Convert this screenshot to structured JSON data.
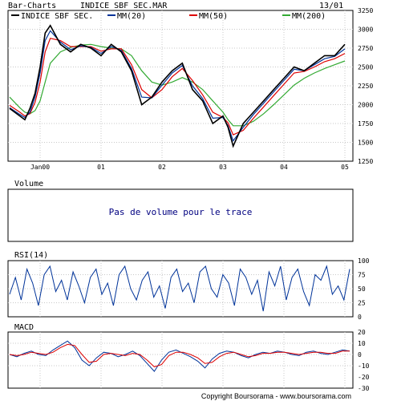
{
  "header": {
    "app_label": "Bar-Charts",
    "instrument": "INDICE SBF SEC.MAR",
    "date_label": "13/01"
  },
  "legend": [
    {
      "label": "INDICE SBF SEC.",
      "color": "#000000"
    },
    {
      "label": "MM(20)",
      "color": "#003399"
    },
    {
      "label": "MM(50)",
      "color": "#dd0000"
    },
    {
      "label": "MM(200)",
      "color": "#33aa33"
    }
  ],
  "volume_panel": {
    "title": "Volume",
    "message": "Pas de volume pour le trace"
  },
  "rsi_panel": {
    "title": "RSI(14)"
  },
  "macd_panel": {
    "title": "MACD"
  },
  "copyright": "Copyright Boursorama - www.boursorama.com",
  "chart_data": [
    {
      "type": "line",
      "title": "INDICE SBF SEC.MAR",
      "x_ticks": [
        "Jan00",
        "01",
        "02",
        "03",
        "04",
        "05"
      ],
      "y_ticks": [
        1250,
        1500,
        1750,
        2000,
        2250,
        2500,
        2750,
        3000,
        3250
      ],
      "ylim": [
        1250,
        3250
      ],
      "x": [
        "1999-07",
        "1999-09",
        "1999-10",
        "1999-11",
        "1999-12",
        "2000-01",
        "2000-02",
        "2000-03",
        "2000-05",
        "2000-07",
        "2000-09",
        "2000-11",
        "2001-01",
        "2001-03",
        "2001-05",
        "2001-07",
        "2001-09",
        "2001-11",
        "2002-01",
        "2002-03",
        "2002-05",
        "2002-07",
        "2002-09",
        "2002-11",
        "2003-01",
        "2003-02",
        "2003-03",
        "2003-05",
        "2003-07",
        "2003-09",
        "2003-11",
        "2004-01",
        "2004-03",
        "2004-05",
        "2004-07",
        "2004-09",
        "2004-11",
        "2005-01"
      ],
      "series": [
        {
          "name": "INDICE SBF SEC.",
          "color": "#000000",
          "values": [
            1950,
            1850,
            1800,
            1950,
            2150,
            2500,
            2950,
            3050,
            2800,
            2700,
            2800,
            2750,
            2650,
            2800,
            2700,
            2450,
            2000,
            2100,
            2300,
            2450,
            2550,
            2200,
            2050,
            1750,
            1850,
            1700,
            1450,
            1750,
            1900,
            2050,
            2200,
            2350,
            2500,
            2450,
            2550,
            2650,
            2650,
            2800
          ]
        },
        {
          "name": "MM(20)",
          "color": "#003399",
          "values": [
            1960,
            1870,
            1830,
            1900,
            2100,
            2420,
            2850,
            2980,
            2830,
            2730,
            2780,
            2760,
            2680,
            2770,
            2720,
            2480,
            2100,
            2090,
            2260,
            2420,
            2520,
            2250,
            2080,
            1820,
            1830,
            1720,
            1520,
            1700,
            1870,
            2020,
            2170,
            2320,
            2470,
            2450,
            2530,
            2610,
            2640,
            2740
          ]
        },
        {
          "name": "MM(50)",
          "color": "#dd0000",
          "values": [
            1990,
            1900,
            1850,
            1880,
            2030,
            2300,
            2700,
            2880,
            2850,
            2770,
            2770,
            2770,
            2710,
            2740,
            2740,
            2530,
            2200,
            2090,
            2200,
            2370,
            2480,
            2320,
            2130,
            1900,
            1830,
            1760,
            1600,
            1660,
            1820,
            1970,
            2120,
            2270,
            2420,
            2440,
            2500,
            2570,
            2610,
            2680
          ]
        },
        {
          "name": "MM(200)",
          "color": "#33aa33",
          "values": [
            2100,
            1960,
            1900,
            1880,
            1920,
            2050,
            2300,
            2550,
            2700,
            2760,
            2790,
            2800,
            2770,
            2750,
            2740,
            2650,
            2450,
            2300,
            2260,
            2300,
            2360,
            2300,
            2200,
            2050,
            1900,
            1800,
            1720,
            1720,
            1780,
            1880,
            2000,
            2130,
            2260,
            2350,
            2420,
            2480,
            2530,
            2580
          ]
        }
      ]
    },
    {
      "type": "line",
      "title": "RSI(14)",
      "y_ticks": [
        0,
        25,
        50,
        75,
        100
      ],
      "ylim": [
        0,
        100
      ],
      "series": [
        {
          "name": "RSI(14)",
          "color": "#003399",
          "values": [
            40,
            70,
            30,
            85,
            60,
            20,
            75,
            90,
            45,
            65,
            30,
            80,
            55,
            25,
            70,
            85,
            40,
            60,
            20,
            75,
            90,
            50,
            30,
            65,
            80,
            35,
            55,
            15,
            70,
            85,
            45,
            60,
            25,
            80,
            90,
            50,
            35,
            75,
            60,
            20,
            85,
            70,
            40,
            65,
            10,
            80,
            55,
            90,
            30,
            70,
            85,
            45,
            20,
            75,
            65,
            90,
            40,
            55,
            30,
            85
          ]
        }
      ]
    },
    {
      "type": "line",
      "title": "MACD",
      "y_ticks": [
        20,
        10,
        0,
        -10,
        -20,
        -30
      ],
      "ylim": [
        -30,
        20
      ],
      "series": [
        {
          "name": "MACD",
          "color": "#003399",
          "values": [
            0,
            -2,
            1,
            3,
            0,
            -1,
            4,
            8,
            12,
            6,
            -5,
            -10,
            -3,
            2,
            1,
            -2,
            0,
            3,
            -1,
            -8,
            -15,
            -5,
            2,
            4,
            1,
            -2,
            -6,
            -12,
            -4,
            1,
            3,
            2,
            -1,
            -3,
            0,
            2,
            1,
            3,
            2,
            0,
            -1,
            2,
            3,
            1,
            0,
            2,
            4,
            3
          ]
        },
        {
          "name": "Signal",
          "color": "#dd0000",
          "values": [
            0,
            -1,
            0,
            2,
            1,
            0,
            2,
            6,
            9,
            8,
            0,
            -7,
            -6,
            0,
            1,
            0,
            -1,
            1,
            0,
            -5,
            -11,
            -9,
            -1,
            2,
            2,
            0,
            -3,
            -8,
            -7,
            -2,
            1,
            2,
            0,
            -2,
            -1,
            1,
            1,
            2,
            2,
            1,
            0,
            1,
            2,
            2,
            1,
            1,
            3,
            3
          ]
        }
      ]
    }
  ]
}
